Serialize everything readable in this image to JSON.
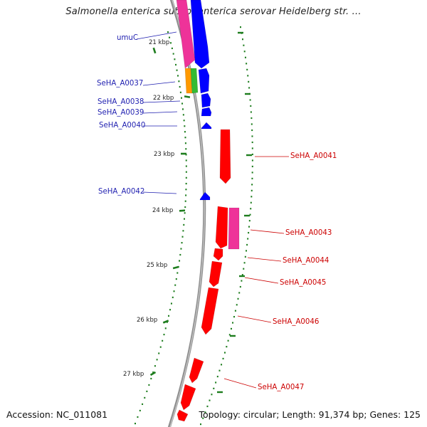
{
  "title": "Salmonella enterica subsp. enterica serovar Heidelberg str. ...",
  "footer": {
    "accession": "Accession: NC_011081",
    "summary": "Topology: circular; Length: 91,374 bp; Genes: 125"
  },
  "colors": {
    "backbone": "#8f8f8f",
    "ruler": "#1e7d1e",
    "forward_label": "#1f1fb0",
    "reverse_label": "#cc0000",
    "cds_forward": "#0000ff",
    "cds_reverse": "#ff0000",
    "gene_pink": "#ee3399",
    "gene_orange": "#ff9900",
    "gene_green": "#33bb33"
  },
  "ruler_ticks": [
    "21 kbp",
    "22 kbp",
    "23 kbp",
    "24 kbp",
    "25 kbp",
    "26 kbp",
    "27 kbp"
  ],
  "forward_labels": [
    "umuC",
    "SeHA_A0037",
    "SeHA_A0038",
    "SeHA_A0039",
    "SeHA_A0040",
    "SeHA_A0042"
  ],
  "reverse_labels": [
    "SeHA_A0041",
    "SeHA_A0043",
    "SeHA_A0044",
    "SeHA_A0045",
    "SeHA_A0046",
    "SeHA_A0047"
  ]
}
